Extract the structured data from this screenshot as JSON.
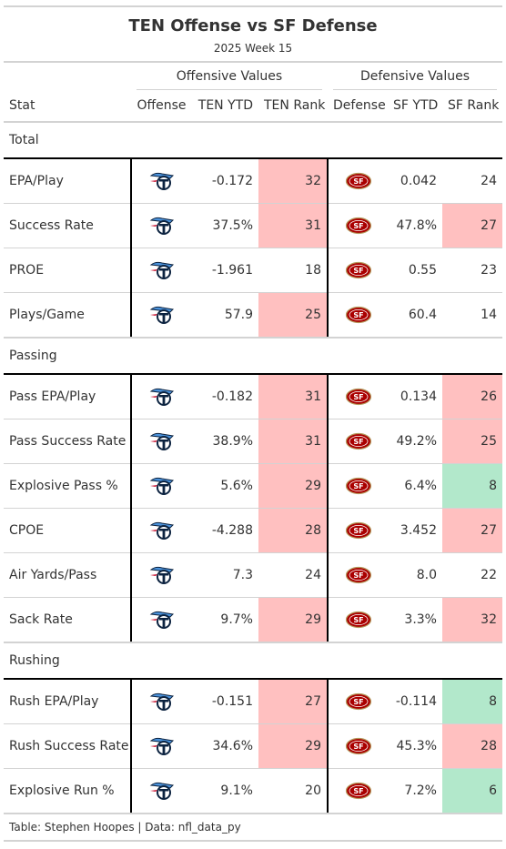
{
  "title": "TEN Offense vs SF Defense",
  "subtitle": "2025 Week 15",
  "spanners": {
    "offense": "Offensive Values",
    "defense": "Defensive Values"
  },
  "columns": [
    "Stat",
    "Offense",
    "TEN YTD",
    "TEN Rank",
    "Defense",
    "SF YTD",
    "SF Rank"
  ],
  "colors": {
    "bad": "#ffc0c0",
    "good": "#b2e8cb",
    "titans_navy": "#0c2340",
    "titans_blue": "#4b92db",
    "niners_red": "#aa0000",
    "niners_gold": "#b3995d"
  },
  "icons": {
    "offense": "titans-logo-icon",
    "defense": "49ers-logo-icon"
  },
  "groups": [
    {
      "name": "Total",
      "rows": [
        {
          "stat": "EPA/Play",
          "ten_ytd": "-0.172",
          "ten_rank": "32",
          "ten_rank_color": "bad",
          "sf_ytd": "0.042",
          "sf_rank": "24",
          "sf_rank_color": ""
        },
        {
          "stat": "Success Rate",
          "ten_ytd": "37.5%",
          "ten_rank": "31",
          "ten_rank_color": "bad",
          "sf_ytd": "47.8%",
          "sf_rank": "27",
          "sf_rank_color": "bad"
        },
        {
          "stat": "PROE",
          "ten_ytd": "-1.961",
          "ten_rank": "18",
          "ten_rank_color": "",
          "sf_ytd": "0.55",
          "sf_rank": "23",
          "sf_rank_color": ""
        },
        {
          "stat": "Plays/Game",
          "ten_ytd": "57.9",
          "ten_rank": "25",
          "ten_rank_color": "bad",
          "sf_ytd": "60.4",
          "sf_rank": "14",
          "sf_rank_color": ""
        }
      ]
    },
    {
      "name": "Passing",
      "rows": [
        {
          "stat": "Pass EPA/Play",
          "ten_ytd": "-0.182",
          "ten_rank": "31",
          "ten_rank_color": "bad",
          "sf_ytd": "0.134",
          "sf_rank": "26",
          "sf_rank_color": "bad"
        },
        {
          "stat": "Pass Success Rate",
          "ten_ytd": "38.9%",
          "ten_rank": "31",
          "ten_rank_color": "bad",
          "sf_ytd": "49.2%",
          "sf_rank": "25",
          "sf_rank_color": "bad"
        },
        {
          "stat": "Explosive Pass %",
          "ten_ytd": "5.6%",
          "ten_rank": "29",
          "ten_rank_color": "bad",
          "sf_ytd": "6.4%",
          "sf_rank": "8",
          "sf_rank_color": "good"
        },
        {
          "stat": "CPOE",
          "ten_ytd": "-4.288",
          "ten_rank": "28",
          "ten_rank_color": "bad",
          "sf_ytd": "3.452",
          "sf_rank": "27",
          "sf_rank_color": "bad"
        },
        {
          "stat": "Air Yards/Pass",
          "ten_ytd": "7.3",
          "ten_rank": "24",
          "ten_rank_color": "",
          "sf_ytd": "8.0",
          "sf_rank": "22",
          "sf_rank_color": ""
        },
        {
          "stat": "Sack Rate",
          "ten_ytd": "9.7%",
          "ten_rank": "29",
          "ten_rank_color": "bad",
          "sf_ytd": "3.3%",
          "sf_rank": "32",
          "sf_rank_color": "bad"
        }
      ]
    },
    {
      "name": "Rushing",
      "rows": [
        {
          "stat": "Rush EPA/Play",
          "ten_ytd": "-0.151",
          "ten_rank": "27",
          "ten_rank_color": "bad",
          "sf_ytd": "-0.114",
          "sf_rank": "8",
          "sf_rank_color": "good"
        },
        {
          "stat": "Rush Success Rate",
          "ten_ytd": "34.6%",
          "ten_rank": "29",
          "ten_rank_color": "bad",
          "sf_ytd": "45.3%",
          "sf_rank": "28",
          "sf_rank_color": "bad"
        },
        {
          "stat": "Explosive Run %",
          "ten_ytd": "9.1%",
          "ten_rank": "20",
          "ten_rank_color": "",
          "sf_ytd": "7.2%",
          "sf_rank": "6",
          "sf_rank_color": "good"
        }
      ]
    }
  ],
  "footer": "Table: Stephen Hoopes | Data: nfl_data_py"
}
